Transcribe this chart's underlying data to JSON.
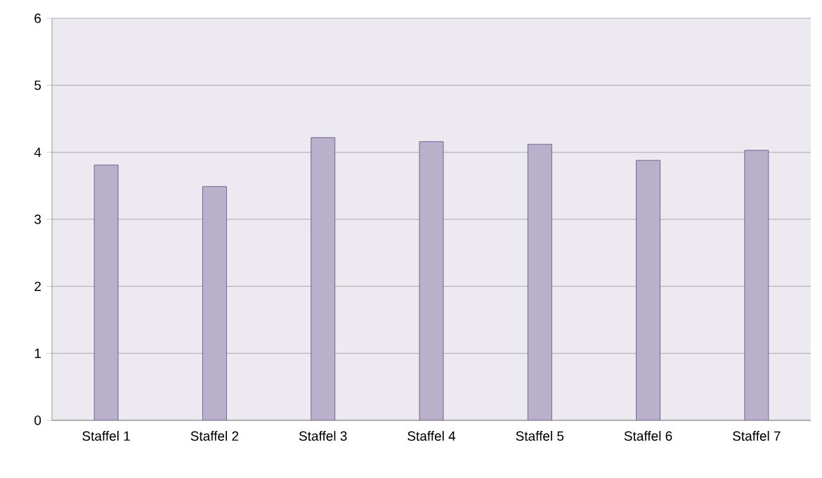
{
  "chart_data": {
    "type": "bar",
    "categories": [
      "Staffel 1",
      "Staffel 2",
      "Staffel 3",
      "Staffel 4",
      "Staffel 5",
      "Staffel 6",
      "Staffel 7"
    ],
    "values": [
      3.81,
      3.49,
      4.22,
      4.16,
      4.12,
      3.88,
      4.03
    ],
    "color": "#b9b0cc",
    "ylim": [
      0,
      6
    ],
    "yticks": [
      0,
      1,
      2,
      3,
      4,
      5,
      6
    ],
    "grid": "y"
  }
}
